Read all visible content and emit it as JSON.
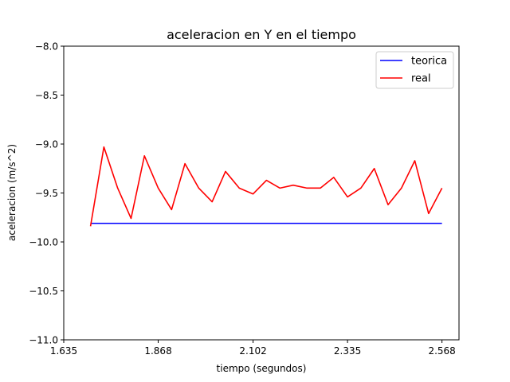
{
  "chart_data": {
    "type": "line",
    "title": "aceleracion en Y en el tiempo",
    "xlabel": "tiempo (segundos)",
    "ylabel": "aceleracion (m/s^2)",
    "xlim": [
      1.635,
      2.61
    ],
    "ylim": [
      -11.0,
      -8.0
    ],
    "x_ticks": [
      1.635,
      1.868,
      2.102,
      2.335,
      2.568
    ],
    "x_tick_labels": [
      "1.635",
      "1.868",
      "2.102",
      "2.335",
      "2.568"
    ],
    "y_ticks": [
      -8.0,
      -8.5,
      -9.0,
      -9.5,
      -10.0,
      -10.5,
      -11.0
    ],
    "y_tick_labels": [
      "−8.0",
      "−8.5",
      "−9.0",
      "−9.5",
      "−10.0",
      "−10.5",
      "−11.0"
    ],
    "grid": false,
    "legend_position": "top-right",
    "series": [
      {
        "name": "teorica",
        "color": "#0000ff",
        "x": [
          1.701,
          2.568
        ],
        "y": [
          -9.81,
          -9.81
        ]
      },
      {
        "name": "real",
        "color": "#ff0000",
        "x": [
          1.701,
          1.734,
          1.768,
          1.801,
          1.834,
          1.868,
          1.901,
          1.934,
          1.968,
          2.001,
          2.034,
          2.068,
          2.102,
          2.135,
          2.168,
          2.201,
          2.235,
          2.268,
          2.301,
          2.335,
          2.368,
          2.401,
          2.435,
          2.468,
          2.501,
          2.535,
          2.568
        ],
        "y": [
          -9.84,
          -9.03,
          -9.45,
          -9.76,
          -9.12,
          -9.45,
          -9.67,
          -9.2,
          -9.45,
          -9.59,
          -9.28,
          -9.45,
          -9.51,
          -9.37,
          -9.45,
          -9.42,
          -9.45,
          -9.45,
          -9.34,
          -9.54,
          -9.45,
          -9.25,
          -9.62,
          -9.45,
          -9.17,
          -9.71,
          -9.45
        ]
      }
    ]
  }
}
